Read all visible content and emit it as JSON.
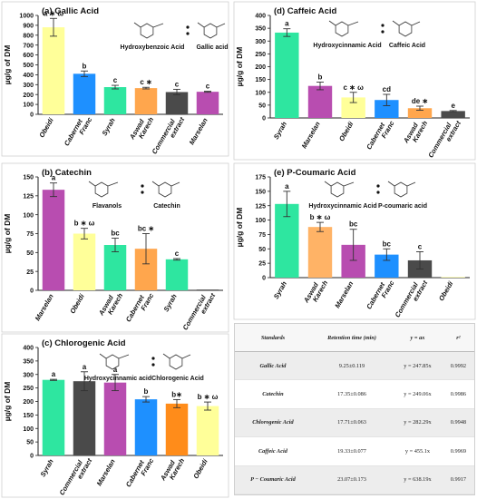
{
  "chart_data": [
    {
      "id": "a",
      "type": "bar",
      "title": "(a) Gallic Acid",
      "ylabel": "µg/g of DM",
      "ylim": [
        0,
        1000
      ],
      "yticks": [
        0,
        100,
        200,
        300,
        400,
        500,
        600,
        700,
        800,
        900,
        1000
      ],
      "categories": [
        "Obeidi",
        "Cabernet Franc",
        "Syrah",
        "Aswad Karech",
        "Commercial extract",
        "Marselan"
      ],
      "values": [
        880,
        410,
        275,
        265,
        225,
        228
      ],
      "errors": [
        90,
        28,
        18,
        8,
        28,
        5
      ],
      "labels": [
        "a ∗ ω",
        "b",
        "c",
        "c ∗",
        "c",
        "c"
      ],
      "colors": [
        "#FFFF99",
        "#1E90FF",
        "#2EE6A0",
        "#FFA64D",
        "#4A4A4A",
        "#B84DB0"
      ],
      "inset_labels": [
        "Hydroxybenzoic Acid",
        "Gallic acid"
      ]
    },
    {
      "id": "b",
      "type": "bar",
      "title": "(b) Catechin",
      "ylabel": "µg/g of DM",
      "ylim": [
        0,
        150
      ],
      "yticks": [
        0,
        25,
        50,
        75,
        100,
        125,
        150
      ],
      "categories": [
        "Marselan",
        "Obeidi",
        "Aswad Karech",
        "Cabernet Franc",
        "Syrah",
        "Commercial extract"
      ],
      "values": [
        133,
        75,
        60,
        55,
        41,
        1
      ],
      "errors": [
        9,
        7,
        9,
        20,
        1,
        0
      ],
      "labels": [
        "a",
        "b ∗ ω",
        "bc",
        "bc ∗",
        "c",
        ""
      ],
      "colors": [
        "#B84DB0",
        "#FFFF99",
        "#2EE6A0",
        "#FFA64D",
        "#2EE6A0",
        "#4A4A4A"
      ],
      "inset_labels": [
        "Flavanols",
        "Catechin"
      ]
    },
    {
      "id": "c",
      "type": "bar",
      "title": "(c) Chlorogenic Acid",
      "ylabel": "µg/g of DM",
      "ylim": [
        0,
        400
      ],
      "yticks": [
        0,
        50,
        100,
        150,
        200,
        250,
        300,
        350,
        400
      ],
      "categories": [
        "Syrah",
        "Commercial extract",
        "Marselan",
        "Cabernet Franc",
        "Aswad Karech",
        "Obeidi"
      ],
      "values": [
        280,
        275,
        270,
        208,
        192,
        183
      ],
      "errors": [
        2,
        35,
        30,
        10,
        15,
        15
      ],
      "labels": [
        "a",
        "a",
        "a",
        "b",
        "b∗",
        "b ∗ ω"
      ],
      "colors": [
        "#2EE6A0",
        "#4A4A4A",
        "#B84DB0",
        "#1E90FF",
        "#FF8C1A",
        "#FFFF99"
      ],
      "inset_labels": [
        "Hydroxycinnamic acid",
        "Chlorogenic Acid"
      ]
    },
    {
      "id": "d",
      "type": "bar",
      "title": "(d) Caffeic Acid",
      "ylabel": "µg/g of DM",
      "ylim": [
        0,
        400
      ],
      "yticks": [
        0,
        50,
        100,
        150,
        200,
        250,
        300,
        350,
        400
      ],
      "categories": [
        "Syrah",
        "Marselan",
        "Obeidi",
        "Cabernet Franc",
        "Aswad Karech",
        "Commercial extract"
      ],
      "values": [
        333,
        125,
        80,
        70,
        38,
        27
      ],
      "errors": [
        15,
        15,
        20,
        22,
        8,
        2
      ],
      "labels": [
        "a",
        "b",
        "c ∗ ω",
        "cd",
        "de ∗",
        "e"
      ],
      "colors": [
        "#2EE6A0",
        "#B84DB0",
        "#FFFF99",
        "#1E90FF",
        "#FFA64D",
        "#4A4A4A"
      ],
      "inset_labels": [
        "Hydroxycinnamic Acid",
        "Caffeic Acid"
      ]
    },
    {
      "id": "e",
      "type": "bar",
      "title": "(e) P-Coumaric Acid",
      "ylabel": "µg/g of DM",
      "ylim": [
        0,
        175
      ],
      "yticks": [
        0,
        25,
        50,
        75,
        100,
        125,
        150,
        175
      ],
      "categories": [
        "Syrah",
        "Aswad Karech",
        "Marselan",
        "Cabernet Franc",
        "Commercial extract",
        "Obeidi"
      ],
      "values": [
        128,
        88,
        57,
        40,
        30,
        1
      ],
      "errors": [
        22,
        8,
        27,
        10,
        15,
        0
      ],
      "labels": [
        "a",
        "b ∗ ω",
        "bc",
        "bc",
        "c",
        ""
      ],
      "colors": [
        "#2EE6A0",
        "#FFB366",
        "#B84DB0",
        "#1E90FF",
        "#4A4A4A",
        "#FFFF99"
      ],
      "inset_labels": [
        "Hydroxycinnamic Acid",
        "P-coumaric acid"
      ]
    }
  ],
  "table": {
    "headers": [
      "Standards",
      "Retention time (min)",
      "y = ax",
      "r²"
    ],
    "rows": [
      [
        "Gallic Acid",
        "9.25±0.119",
        "y = 247.85x",
        "0.9992"
      ],
      [
        "Catechin",
        "17.35±0.086",
        "y = 249.06x",
        "0.9986"
      ],
      [
        "Chlorogenic Acid",
        "17.71±0.063",
        "y = 282.29x",
        "0.9948"
      ],
      [
        "Caffeic Acid",
        "19.33±0.077",
        "y = 455.1x",
        "0.9969"
      ],
      [
        "P − Coumaric Acid",
        "23.07±0.173",
        "y = 638.19x",
        "0.9917"
      ]
    ]
  }
}
